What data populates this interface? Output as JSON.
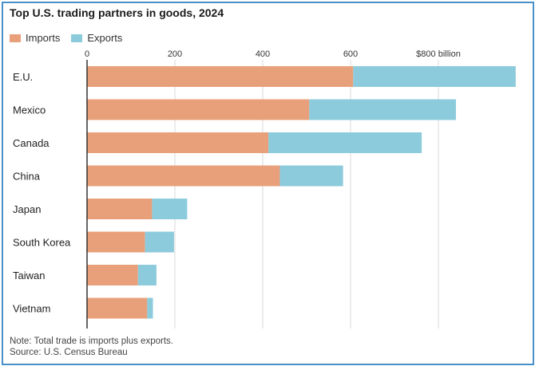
{
  "chart_data": {
    "type": "bar",
    "orientation": "horizontal",
    "stacked": true,
    "title": "Top U.S. trading partners in goods, 2024",
    "categories": [
      "E.U.",
      "Mexico",
      "Canada",
      "China",
      "Japan",
      "South Korea",
      "Taiwan",
      "Vietnam"
    ],
    "series": [
      {
        "name": "Imports",
        "color": "#e8a07a",
        "values": [
          606,
          506,
          413,
          439,
          148,
          132,
          116,
          137
        ]
      },
      {
        "name": "Exports",
        "color": "#8ccbdb",
        "values": [
          370,
          334,
          349,
          144,
          80,
          66,
          42,
          13
        ]
      }
    ],
    "x_ticks": [
      0,
      200,
      400,
      600,
      800
    ],
    "x_tick_labels": [
      "0",
      "200",
      "400",
      "600",
      "$800 billion"
    ],
    "xlim": [
      0,
      1000
    ],
    "grid": true,
    "legend_position": "top-left"
  },
  "notes": {
    "line1": "Note: Total trade is imports plus exports.",
    "line2": "Source: U.S. Census Bureau"
  }
}
